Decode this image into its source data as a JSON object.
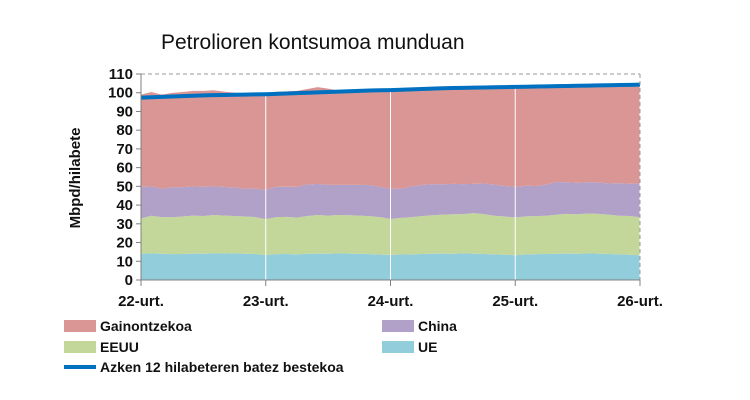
{
  "chart_data": {
    "type": "area",
    "title": "Petrolioren kontsumoa munduan",
    "ylabel": "Mbpd/hilabete",
    "xlabel": "",
    "ylim": [
      0,
      110
    ],
    "yticks": [
      0,
      10,
      20,
      30,
      40,
      50,
      60,
      70,
      80,
      90,
      100,
      110
    ],
    "x_tick_labels": [
      "22-urt.",
      "23-urt.",
      "24-urt.",
      "25-urt.",
      "26-urt."
    ],
    "x_tick_index": [
      0,
      12,
      24,
      36,
      48
    ],
    "stacked": true,
    "grid": "dashed line at top (110) only",
    "legend_position": "bottom",
    "series": [
      {
        "name": "UE",
        "color": "#92cddc",
        "values": [
          14.0,
          14.2,
          14.0,
          13.8,
          13.9,
          14.1,
          14.0,
          14.2,
          14.1,
          14.3,
          14.0,
          13.9,
          13.3,
          13.8,
          13.9,
          13.7,
          14.0,
          14.1,
          14.0,
          14.2,
          14.1,
          14.0,
          13.8,
          13.6,
          13.4,
          13.6,
          13.7,
          13.9,
          14.0,
          14.1,
          14.0,
          14.2,
          14.1,
          13.9,
          13.7,
          13.5,
          13.2,
          13.6,
          13.8,
          13.9,
          14.0,
          14.1,
          14.0,
          14.2,
          14.1,
          13.9,
          13.7,
          13.5,
          13.2
        ]
      },
      {
        "name": "EEUU",
        "color": "#c4d79b",
        "values": [
          18.9,
          20.1,
          19.6,
          19.7,
          20.0,
          20.3,
          20.2,
          20.5,
          20.3,
          19.9,
          19.9,
          19.7,
          19.2,
          19.8,
          19.8,
          19.6,
          20.2,
          20.6,
          20.4,
          20.5,
          20.5,
          20.4,
          20.3,
          20.0,
          19.2,
          19.6,
          19.9,
          20.2,
          20.6,
          20.8,
          21.1,
          21.0,
          21.6,
          21.3,
          20.6,
          20.4,
          20.2,
          20.4,
          20.3,
          20.4,
          20.9,
          21.2,
          21.1,
          21.3,
          21.2,
          21.0,
          20.6,
          20.7,
          20.3
        ]
      },
      {
        "name": "China",
        "color": "#b1a0c7",
        "values": [
          16.8,
          15.6,
          15.2,
          16.0,
          15.7,
          15.6,
          15.6,
          15.3,
          15.3,
          15.2,
          14.9,
          15.2,
          15.7,
          16.2,
          16.1,
          16.5,
          16.8,
          16.6,
          16.4,
          16.1,
          16.2,
          16.4,
          16.6,
          16.1,
          16.1,
          15.6,
          16.3,
          16.6,
          16.6,
          16.2,
          16.2,
          16.0,
          15.6,
          16.3,
          16.7,
          16.3,
          16.3,
          16.3,
          16.1,
          16.7,
          17.4,
          16.9,
          16.8,
          16.7,
          16.8,
          16.6,
          17.4,
          17.2,
          18.0
        ]
      },
      {
        "name": "Gainontzekoa",
        "color": "#da9694",
        "values": [
          49.3,
          50.5,
          50.2,
          50.4,
          50.8,
          51.0,
          51.2,
          51.3,
          50.9,
          50.6,
          50.5,
          50.9,
          51.5,
          50.7,
          50.9,
          51.2,
          51.0,
          51.7,
          51.4,
          50.3,
          50.4,
          50.5,
          50.9,
          51.3,
          51.6,
          52.0,
          51.4,
          51.3,
          51.0,
          50.9,
          51.4,
          51.5,
          52.0,
          51.9,
          52.2,
          52.9,
          53.4,
          53.1,
          53.1,
          52.5,
          52.2,
          52.3,
          52.5,
          52.3,
          52.4,
          52.9,
          52.8,
          53.3,
          53.1
        ]
      }
    ],
    "average_line": {
      "name": "Azken 12 hilabeteren batez bestekoa",
      "color": "#0070c0",
      "values": [
        97.4,
        97.6,
        97.8,
        98.0,
        98.2,
        98.4,
        98.6,
        98.7,
        98.8,
        98.9,
        99.0,
        99.1,
        99.2,
        99.4,
        99.6,
        99.8,
        100.0,
        100.2,
        100.4,
        100.6,
        100.8,
        101.0,
        101.2,
        101.3,
        101.4,
        101.6,
        101.8,
        102.0,
        102.2,
        102.4,
        102.5,
        102.6,
        102.7,
        102.8,
        102.9,
        103.0,
        103.1,
        103.2,
        103.3,
        103.4,
        103.5,
        103.6,
        103.7,
        103.8,
        103.9,
        104.0,
        104.1,
        104.2,
        104.3
      ]
    },
    "legend_order": [
      "Gainontzekoa",
      "China",
      "EEUU",
      "UE",
      "Azken 12 hilabeteren batez bestekoa"
    ]
  }
}
